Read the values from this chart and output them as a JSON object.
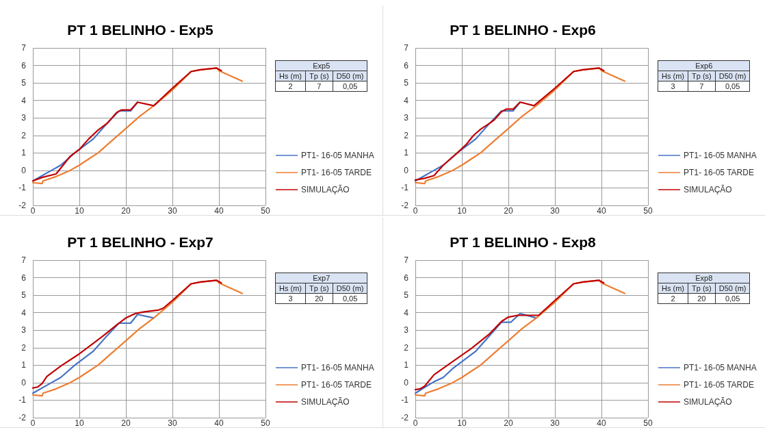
{
  "chart_data": [
    {
      "type": "line",
      "title": "PT 1 BELINHO - Exp5",
      "xlim": [
        0,
        50
      ],
      "ylim": [
        -2,
        7
      ],
      "xticks": [
        0,
        10,
        20,
        30,
        40,
        50
      ],
      "yticks": [
        -2,
        -1,
        0,
        1,
        2,
        3,
        4,
        5,
        6,
        7
      ],
      "grid": true,
      "legend": "right",
      "annotations": [
        "Exp5",
        "Hs (m)",
        "Tp (s)",
        "D50 (m)",
        "2",
        "7",
        "0,05"
      ],
      "series": [
        {
          "name": "PT1- 16-05 MANHA",
          "color": "#4472c4",
          "x": [
            0,
            4,
            6,
            9,
            13,
            16,
            18.5,
            21,
            22.5
          ],
          "values": [
            -0.6,
            0,
            0.3,
            1,
            1.8,
            2.7,
            3.4,
            3.4,
            3.9
          ]
        },
        {
          "name": "PT1- 16-05 TARDE",
          "color": "#ed7d31",
          "x": [
            0,
            2,
            2.2,
            5,
            8,
            10,
            12,
            14,
            17,
            20,
            23,
            26,
            30,
            34,
            36,
            39.5,
            40,
            45
          ],
          "values": [
            -0.7,
            -0.75,
            -0.6,
            -0.35,
            0,
            0.3,
            0.65,
            1,
            1.7,
            2.4,
            3.1,
            3.7,
            4.6,
            5.65,
            5.75,
            5.85,
            5.7,
            5.1
          ]
        },
        {
          "name": "SIMULAÇÃO",
          "color": "#c00000",
          "x": [
            0,
            2,
            5,
            8,
            10,
            12,
            14,
            16,
            18,
            19,
            21,
            22.5,
            26,
            30,
            34,
            36,
            39.5,
            40.5
          ],
          "values": [
            -0.6,
            -0.4,
            -0.2,
            0.8,
            1.2,
            1.8,
            2.3,
            2.7,
            3.3,
            3.45,
            3.45,
            3.9,
            3.7,
            4.7,
            5.65,
            5.75,
            5.85,
            5.7
          ]
        }
      ]
    },
    {
      "type": "line",
      "title": "PT 1 BELINHO - Exp6",
      "xlim": [
        0,
        50
      ],
      "ylim": [
        -2,
        7
      ],
      "xticks": [
        0,
        10,
        20,
        30,
        40,
        50
      ],
      "yticks": [
        -2,
        -1,
        0,
        1,
        2,
        3,
        4,
        5,
        6,
        7
      ],
      "grid": true,
      "legend": "right",
      "annotations": [
        "Exp6",
        "Hs (m)",
        "Tp (s)",
        "D50 (m)",
        "3",
        "7",
        "0,05"
      ],
      "series": [
        {
          "name": "PT1- 16-05 MANHA",
          "color": "#4472c4",
          "x": [
            0,
            4,
            6,
            9,
            13,
            16,
            18.5,
            21,
            22.5
          ],
          "values": [
            -0.6,
            0,
            0.3,
            1,
            1.8,
            2.7,
            3.4,
            3.4,
            3.9
          ]
        },
        {
          "name": "PT1- 16-05 TARDE",
          "color": "#ed7d31",
          "x": [
            0,
            2,
            2.2,
            5,
            8,
            10,
            12,
            14,
            17,
            20,
            23,
            26,
            30,
            34,
            36,
            39.5,
            40,
            45
          ],
          "values": [
            -0.7,
            -0.75,
            -0.6,
            -0.35,
            0,
            0.3,
            0.65,
            1,
            1.7,
            2.4,
            3.1,
            3.7,
            4.6,
            5.65,
            5.75,
            5.85,
            5.7,
            5.1
          ]
        },
        {
          "name": "SIMULAÇÃO",
          "color": "#c00000",
          "x": [
            0,
            2,
            4,
            6,
            9,
            11,
            12.5,
            14,
            16,
            17,
            18.5,
            19.5,
            21,
            22.5,
            25.5,
            30,
            34,
            36,
            39.5,
            40.5
          ],
          "values": [
            -0.55,
            -0.45,
            -0.3,
            0.3,
            1,
            1.5,
            2,
            2.35,
            2.7,
            2.9,
            3.35,
            3.5,
            3.5,
            3.9,
            3.7,
            4.7,
            5.65,
            5.75,
            5.85,
            5.7
          ]
        }
      ]
    },
    {
      "type": "line",
      "title": "PT 1 BELINHO - Exp7",
      "xlim": [
        0,
        50
      ],
      "ylim": [
        -2,
        7
      ],
      "xticks": [
        0,
        10,
        20,
        30,
        40,
        50
      ],
      "yticks": [
        -2,
        -1,
        0,
        1,
        2,
        3,
        4,
        5,
        6,
        7
      ],
      "grid": true,
      "legend": "right",
      "annotations": [
        "Exp7",
        "Hs (m)",
        "Tp (s)",
        "D50 (m)",
        "3",
        "20",
        "0,05"
      ],
      "series": [
        {
          "name": "PT1- 16-05 MANHA",
          "color": "#4472c4",
          "x": [
            0,
            4,
            6,
            9,
            13,
            16,
            18.5,
            21,
            22.5,
            26
          ],
          "values": [
            -0.6,
            0,
            0.3,
            1,
            1.8,
            2.7,
            3.4,
            3.4,
            3.9,
            3.7
          ]
        },
        {
          "name": "PT1- 16-05 TARDE",
          "color": "#ed7d31",
          "x": [
            0,
            2,
            2.2,
            5,
            8,
            10,
            12,
            14,
            17,
            20,
            23,
            26,
            30,
            34,
            36,
            39.5,
            40,
            45
          ],
          "values": [
            -0.7,
            -0.75,
            -0.6,
            -0.35,
            0,
            0.3,
            0.65,
            1,
            1.7,
            2.4,
            3.1,
            3.7,
            4.6,
            5.65,
            5.75,
            5.85,
            5.7,
            5.1
          ]
        },
        {
          "name": "SIMULAÇÃO",
          "color": "#c00000",
          "x": [
            0,
            1,
            2,
            3,
            6,
            10,
            15,
            18,
            20,
            22,
            24,
            27,
            28,
            30,
            34,
            36,
            39.5,
            40.5
          ],
          "values": [
            -0.3,
            -0.25,
            -0.05,
            0.35,
            0.95,
            1.65,
            2.65,
            3.3,
            3.7,
            3.95,
            4.05,
            4.15,
            4.25,
            4.7,
            5.65,
            5.75,
            5.85,
            5.7
          ]
        }
      ]
    },
    {
      "type": "line",
      "title": "PT 1 BELINHO - Exp8",
      "xlim": [
        0,
        50
      ],
      "ylim": [
        -2,
        7
      ],
      "xticks": [
        0,
        10,
        20,
        30,
        40,
        50
      ],
      "yticks": [
        -2,
        -1,
        0,
        1,
        2,
        3,
        4,
        5,
        6,
        7
      ],
      "grid": true,
      "legend": "right",
      "annotations": [
        "Exp8",
        "Hs (m)",
        "Tp (s)",
        "D50 (m)",
        "2",
        "20",
        "0,05"
      ],
      "series": [
        {
          "name": "PT1- 16-05 MANHA",
          "color": "#4472c4",
          "x": [
            0,
            3,
            4,
            6,
            8,
            13,
            18.5,
            20.5,
            22.5,
            26
          ],
          "values": [
            -0.6,
            -0.1,
            0.05,
            0.3,
            0.8,
            1.8,
            3.45,
            3.45,
            3.95,
            3.7
          ]
        },
        {
          "name": "PT1- 16-05 TARDE",
          "color": "#ed7d31",
          "x": [
            0,
            2,
            2.2,
            5,
            8,
            10,
            12,
            14,
            17,
            20,
            23,
            26,
            30,
            34,
            36,
            39.5,
            40,
            45
          ],
          "values": [
            -0.7,
            -0.75,
            -0.6,
            -0.35,
            0,
            0.3,
            0.65,
            1,
            1.7,
            2.4,
            3.1,
            3.7,
            4.6,
            5.65,
            5.75,
            5.85,
            5.7,
            5.1
          ]
        },
        {
          "name": "SIMULAÇÃO",
          "color": "#c00000",
          "x": [
            0,
            1,
            2,
            4,
            8,
            12,
            16,
            18.5,
            20,
            22,
            24,
            26.5,
            30,
            34,
            36,
            39.5,
            40.5
          ],
          "values": [
            -0.4,
            -0.35,
            -0.2,
            0.45,
            1.2,
            1.95,
            2.8,
            3.5,
            3.75,
            3.85,
            3.85,
            3.85,
            4.7,
            5.65,
            5.75,
            5.85,
            5.7
          ]
        }
      ]
    }
  ]
}
